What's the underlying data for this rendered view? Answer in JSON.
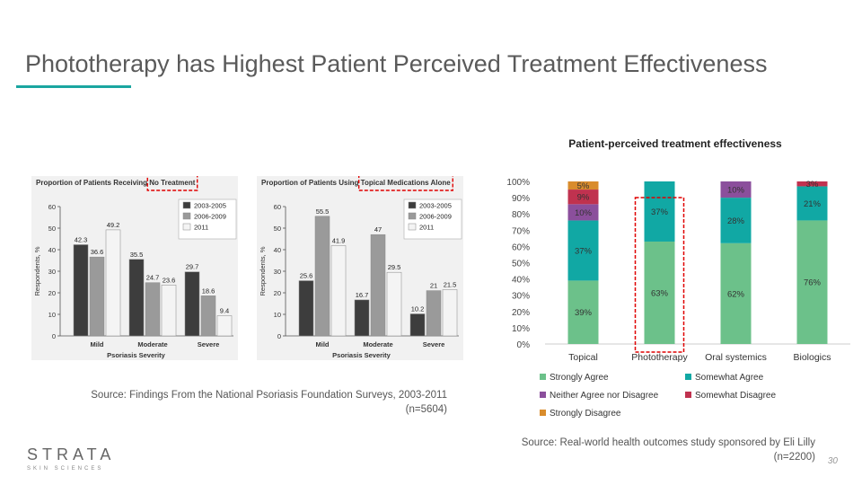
{
  "slide": {
    "title": "Phototherapy has Highest Patient Perceived Treatment Effectiveness",
    "accent_color": "#1aa6a0",
    "page_number": "30",
    "logo": {
      "word": "STRATA",
      "sub": "SKIN SCIENCES"
    },
    "source_left_line1": "Source: Findings From the National Psoriasis Foundation Surveys, 2003-2011",
    "source_left_line2": "(n=5604)",
    "source_right_line1": "Source: Real-world health outcomes study sponsored by Eli Lilly",
    "source_right_line2": "(n=2200)"
  },
  "chart_data": [
    {
      "type": "bar",
      "title": "Proportion of Patients Receiving No Treatment",
      "highlight_label": "No Treatment",
      "xlabel": "Psoriasis Severity",
      "ylabel": "Respondents, %",
      "categories": [
        "Mild",
        "Moderate",
        "Severe"
      ],
      "ylim": [
        0,
        60
      ],
      "yticks": [
        0,
        10,
        20,
        30,
        40,
        50,
        60
      ],
      "series": [
        {
          "name": "2003-2005",
          "color": "#3d3d3d",
          "values": [
            42.3,
            35.5,
            29.7
          ]
        },
        {
          "name": "2006-2009",
          "color": "#9a9a9a",
          "values": [
            36.6,
            24.7,
            18.6
          ]
        },
        {
          "name": "2011",
          "color": "#f4f4f4",
          "values": [
            49.2,
            23.6,
            9.4
          ]
        }
      ]
    },
    {
      "type": "bar",
      "title": "Proportion of Patients Using Topical Medications Alone",
      "highlight_label": "Topical Medications Alone",
      "xlabel": "Psoriasis Severity",
      "ylabel": "Respondents, %",
      "categories": [
        "Mild",
        "Moderate",
        "Severe"
      ],
      "ylim": [
        0,
        60
      ],
      "yticks": [
        0,
        10,
        20,
        30,
        40,
        50,
        60
      ],
      "series": [
        {
          "name": "2003-2005",
          "color": "#3d3d3d",
          "values": [
            25.6,
            16.7,
            10.2
          ]
        },
        {
          "name": "2006-2009",
          "color": "#9a9a9a",
          "values": [
            55.5,
            47,
            21
          ]
        },
        {
          "name": "2011",
          "color": "#f4f4f4",
          "values": [
            41.9,
            29.5,
            21.5
          ]
        }
      ]
    },
    {
      "type": "bar",
      "stacked": true,
      "title": "Patient-perceived treatment effectiveness",
      "categories": [
        "Topical",
        "Phototherapy",
        "Oral systemics",
        "Biologics"
      ],
      "highlight_category": "Phototherapy",
      "ylim": [
        0,
        100
      ],
      "yticks": [
        "0%",
        "10%",
        "20%",
        "30%",
        "40%",
        "50%",
        "60%",
        "70%",
        "80%",
        "90%",
        "100%"
      ],
      "legend_position": "bottom",
      "series": [
        {
          "name": "Strongly Agree",
          "color": "#6cc18a",
          "values": [
            39,
            63,
            62,
            76
          ],
          "labels": [
            "39%",
            "63%",
            "62%",
            "76%"
          ]
        },
        {
          "name": "Somewhat Agree",
          "color": "#11a8a4",
          "values": [
            37,
            37,
            28,
            21
          ],
          "labels": [
            "37%",
            "37%",
            "28%",
            "21%"
          ]
        },
        {
          "name": "Neither Agree nor Disagree",
          "color": "#8b4f9c",
          "values": [
            10,
            0,
            10,
            0
          ],
          "labels": [
            "10%",
            "",
            "10%",
            ""
          ]
        },
        {
          "name": "Somewhat Disagree",
          "color": "#c0324f",
          "values": [
            9,
            0,
            0,
            3
          ],
          "labels": [
            "9%",
            "",
            "",
            "3%"
          ]
        },
        {
          "name": "Strongly Disagree",
          "color": "#d98c2c",
          "values": [
            5,
            0,
            0,
            0
          ],
          "labels": [
            "5%",
            "",
            "",
            ""
          ]
        }
      ]
    }
  ]
}
